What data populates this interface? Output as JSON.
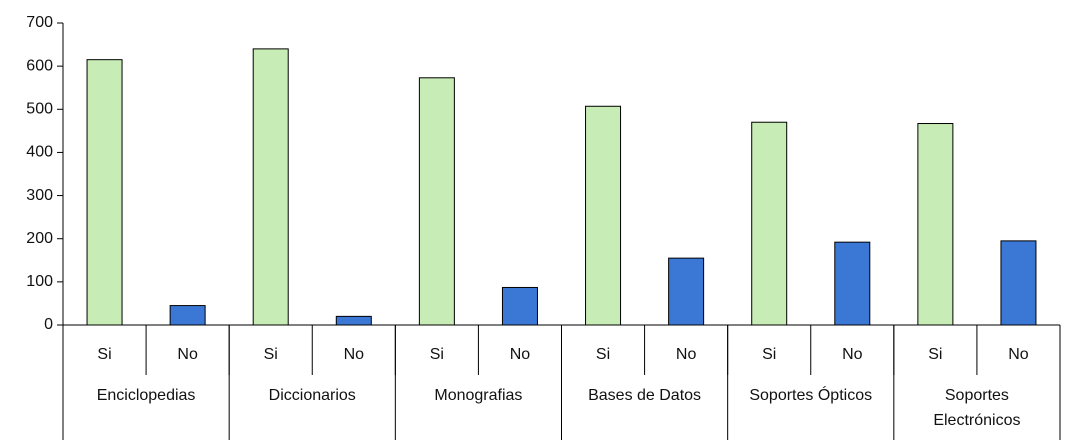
{
  "chart_data": {
    "type": "bar",
    "groups": [
      "Enciclopedias",
      "Diccionarios",
      "Monografias",
      "Bases de Datos",
      "Soportes Ópticos",
      "Soportes Electrónicos"
    ],
    "categories": [
      "Si",
      "No",
      "Si",
      "No",
      "Si",
      "No",
      "Si",
      "No",
      "Si",
      "No",
      "Si",
      "No"
    ],
    "values": [
      615,
      45,
      640,
      20,
      573,
      87,
      507,
      155,
      470,
      192,
      467,
      195
    ],
    "colors": [
      "#c8ecb6",
      "#3b78d6",
      "#c8ecb6",
      "#3b78d6",
      "#c8ecb6",
      "#3b78d6",
      "#c8ecb6",
      "#3b78d6",
      "#c8ecb6",
      "#3b78d6",
      "#c8ecb6",
      "#3b78d6"
    ],
    "ylim": [
      0,
      700
    ],
    "yticks": [
      0,
      100,
      200,
      300,
      400,
      500,
      600,
      700
    ],
    "grid": false
  }
}
